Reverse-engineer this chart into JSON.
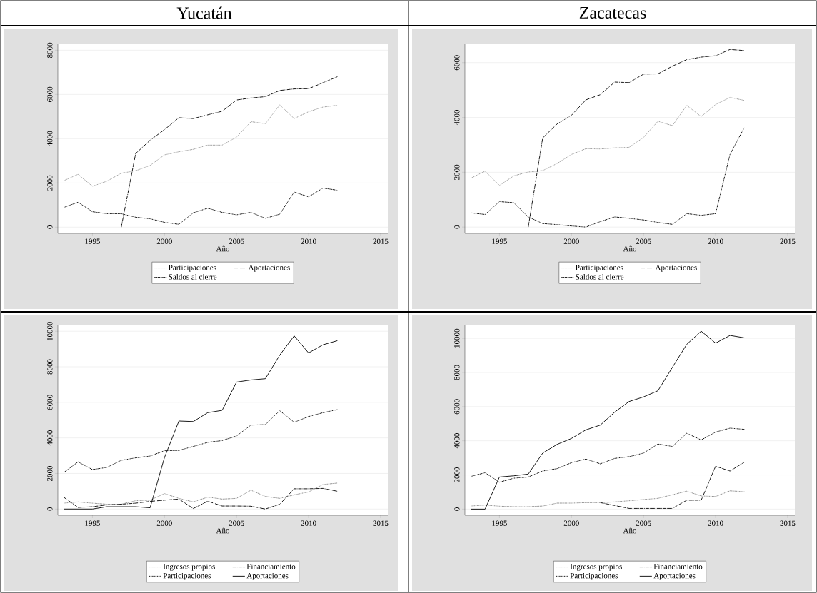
{
  "chart_data": [
    {
      "type": "line",
      "title": "Yucatán",
      "xlabel": "Año",
      "x": [
        1993,
        1994,
        1995,
        1996,
        1997,
        1998,
        1999,
        2000,
        2001,
        2002,
        2003,
        2004,
        2005,
        2006,
        2007,
        2008,
        2009,
        2010,
        2011,
        2012
      ],
      "xlim": [
        1992.6,
        2015.5
      ],
      "xticks": [
        1995,
        2000,
        2005,
        2010,
        2015
      ],
      "ylim": [
        -280,
        8270
      ],
      "yticks": [
        0,
        2000,
        4000,
        6000,
        8000
      ],
      "grid": "y",
      "legend": "bottom",
      "series": [
        {
          "name": "Participaciones",
          "color": "#9a9a9a",
          "line_style": "dotted",
          "values": [
            2100,
            2390,
            1850,
            2080,
            2440,
            2550,
            2790,
            3270,
            3410,
            3520,
            3710,
            3710,
            4070,
            4770,
            4680,
            5530,
            4910,
            5220,
            5430,
            5510
          ]
        },
        {
          "name": "Aportaciones",
          "color": "#000000",
          "line_style": "dashdot",
          "values": [
            null,
            null,
            null,
            null,
            0,
            3330,
            3930,
            4410,
            4950,
            4910,
            5080,
            5240,
            5750,
            5840,
            5900,
            6180,
            6250,
            6260,
            6530,
            6800
          ]
        },
        {
          "name": "Saldos al cierre",
          "color": "#000000",
          "line_style": "dotted",
          "values": [
            890,
            1130,
            700,
            610,
            610,
            450,
            380,
            220,
            130,
            650,
            860,
            670,
            560,
            670,
            400,
            590,
            1590,
            1370,
            1770,
            1670
          ]
        }
      ]
    },
    {
      "type": "line",
      "title": "Zacatecas",
      "xlabel": "Año",
      "x": [
        1993,
        1994,
        1995,
        1996,
        1997,
        1998,
        1999,
        2000,
        2001,
        2002,
        2003,
        2004,
        2005,
        2006,
        2007,
        2008,
        2009,
        2010,
        2011,
        2012
      ],
      "xlim": [
        1992.6,
        2015.5
      ],
      "xticks": [
        1995,
        2000,
        2005,
        2010,
        2015
      ],
      "ylim": [
        -230,
        6670
      ],
      "yticks": [
        0,
        2000,
        4000,
        6000
      ],
      "grid": "y",
      "legend": "bottom",
      "series": [
        {
          "name": "Participaciones",
          "color": "#9a9a9a",
          "line_style": "dotted",
          "values": [
            1780,
            2040,
            1520,
            1870,
            2010,
            2060,
            2320,
            2650,
            2860,
            2850,
            2890,
            2910,
            3270,
            3860,
            3700,
            4440,
            4030,
            4470,
            4730,
            4620
          ]
        },
        {
          "name": "Aportaciones",
          "color": "#000000",
          "line_style": "dashdot",
          "values": [
            null,
            null,
            null,
            null,
            0,
            3250,
            3760,
            4080,
            4640,
            4830,
            5290,
            5270,
            5580,
            5590,
            5870,
            6110,
            6200,
            6250,
            6480,
            6440
          ]
        },
        {
          "name": "Saldos al cierre",
          "color": "#000000",
          "line_style": "dotted",
          "values": [
            520,
            460,
            930,
            890,
            370,
            130,
            90,
            40,
            0,
            200,
            370,
            320,
            260,
            170,
            100,
            490,
            430,
            490,
            2650,
            3640
          ]
        }
      ]
    },
    {
      "type": "line",
      "xlabel": "Año",
      "x": [
        1993,
        1994,
        1995,
        1996,
        1997,
        1998,
        1999,
        2000,
        2001,
        2002,
        2003,
        2004,
        2005,
        2006,
        2007,
        2008,
        2009,
        2010,
        2011,
        2012
      ],
      "xlim": [
        1992.6,
        2015.5
      ],
      "xticks": [
        1995,
        2000,
        2005,
        2010,
        2015
      ],
      "ylim": [
        -350,
        10370
      ],
      "yticks": [
        0,
        2000,
        4000,
        6000,
        8000,
        10000
      ],
      "grid": "y",
      "legend": "bottom",
      "series": [
        {
          "name": "Ingresos propios",
          "color": "#888888",
          "line_style": "dotted",
          "values": [
            330,
            400,
            330,
            270,
            270,
            470,
            500,
            870,
            600,
            400,
            670,
            560,
            600,
            1060,
            710,
            600,
            800,
            960,
            1380,
            1460
          ]
        },
        {
          "name": "Financiamiento",
          "color": "#000000",
          "line_style": "dashdot",
          "values": [
            670,
            90,
            130,
            230,
            270,
            330,
            430,
            500,
            560,
            30,
            440,
            170,
            170,
            160,
            0,
            270,
            1140,
            1140,
            1160,
            1000
          ]
        },
        {
          "name": "Participaciones",
          "color": "#000000",
          "line_style": "dotted",
          "values": [
            2050,
            2650,
            2220,
            2340,
            2740,
            2880,
            2980,
            3280,
            3300,
            3520,
            3750,
            3850,
            4110,
            4720,
            4750,
            5530,
            4880,
            5200,
            5420,
            5590
          ]
        },
        {
          "name": "Aportaciones",
          "color": "#000000",
          "line_style": "solid",
          "values": [
            0,
            0,
            0,
            130,
            130,
            130,
            70,
            2900,
            4950,
            4920,
            5420,
            5550,
            7140,
            7260,
            7330,
            8660,
            9740,
            8780,
            9240,
            9470
          ]
        }
      ]
    },
    {
      "type": "line",
      "xlabel": "Año",
      "x": [
        1993,
        1994,
        1995,
        1996,
        1997,
        1998,
        1999,
        2000,
        2001,
        2002,
        2003,
        2004,
        2005,
        2006,
        2007,
        2008,
        2009,
        2010,
        2011,
        2012
      ],
      "xlim": [
        1992.6,
        2015.5
      ],
      "xticks": [
        1995,
        2000,
        2005,
        2010,
        2015
      ],
      "ylim": [
        -360,
        10800
      ],
      "yticks": [
        0,
        2000,
        4000,
        6000,
        8000,
        10000
      ],
      "grid": "y",
      "legend": "bottom",
      "series": [
        {
          "name": "Ingresos propios",
          "color": "#888888",
          "line_style": "dotted",
          "values": [
            180,
            240,
            170,
            140,
            140,
            180,
            350,
            350,
            380,
            380,
            420,
            490,
            560,
            630,
            840,
            1050,
            770,
            740,
            1070,
            1020
          ]
        },
        {
          "name": "Financiamiento",
          "color": "#000000",
          "line_style": "dashdot",
          "values": [
            null,
            null,
            null,
            null,
            null,
            null,
            null,
            null,
            null,
            380,
            210,
            40,
            40,
            40,
            40,
            520,
            520,
            2510,
            2230,
            2750
          ]
        },
        {
          "name": "Participaciones",
          "color": "#000000",
          "line_style": "dotted",
          "values": [
            1910,
            2130,
            1580,
            1810,
            1880,
            2230,
            2370,
            2720,
            2930,
            2650,
            2970,
            3070,
            3280,
            3810,
            3670,
            4440,
            4050,
            4510,
            4740,
            4670
          ]
        },
        {
          "name": "Aportaciones",
          "color": "#000000",
          "line_style": "solid",
          "values": [
            0,
            0,
            1880,
            1950,
            2050,
            3280,
            3790,
            4140,
            4640,
            4920,
            5680,
            6300,
            6570,
            6930,
            8300,
            9650,
            10420,
            9720,
            10170,
            10030
          ]
        }
      ]
    }
  ]
}
